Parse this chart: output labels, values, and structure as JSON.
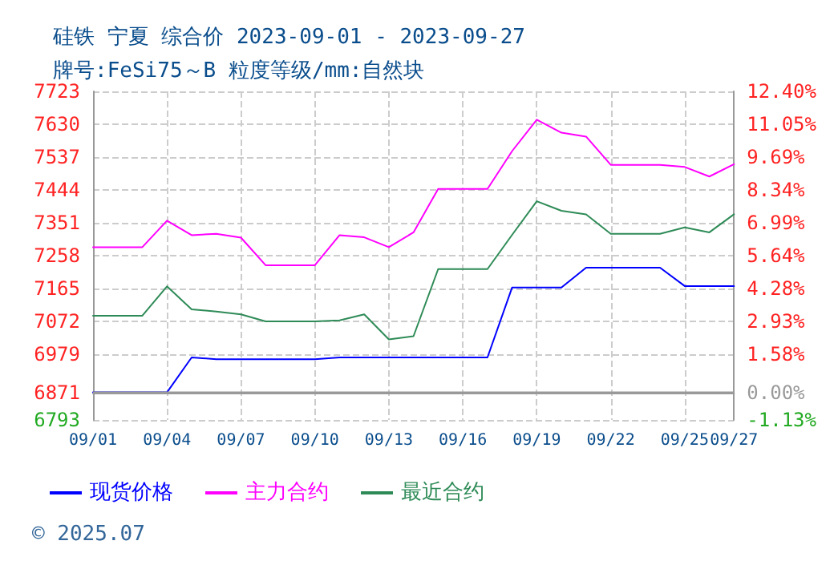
{
  "chart_data": {
    "type": "line",
    "title": "硅铁 宁夏 综合价 2023-09-01 - 2023-09-27",
    "subtitle": "牌号:FeSi75～B 粒度等级/mm:自然块",
    "annotations": [
      "© 2025.07"
    ],
    "series": [
      {
        "name": "现货价格",
        "color": "#0000ff",
        "x": [
          "--09-01",
          "--09-04",
          "--09-05",
          "--09-06",
          "--09-10",
          "--09-11",
          "--09-17",
          "--09-18",
          "--09-20",
          "--09-21",
          "--09-24",
          "--09-25",
          "--09-27"
        ],
        "values": [
          6871,
          6871,
          6970,
          6965,
          6965,
          6970,
          6970,
          7168,
          7168,
          7224,
          7224,
          7172,
          7172
        ]
      },
      {
        "name": "主力合约",
        "color": "#ff00ff",
        "x": [
          "--09-01",
          "--09-03",
          "--09-04",
          "--09-05",
          "--09-06",
          "--09-07",
          "--09-08",
          "--09-10",
          "--09-11",
          "--09-12",
          "--09-13",
          "--09-14",
          "--09-15",
          "--09-17",
          "--09-18",
          "--09-19",
          "--09-20",
          "--09-21",
          "--09-22",
          "--09-24",
          "--09-25",
          "--09-26",
          "--09-27"
        ],
        "values": [
          7282,
          7282,
          7357,
          7316,
          7320,
          7309,
          7231,
          7231,
          7316,
          7310,
          7282,
          7324,
          7447,
          7447,
          7554,
          7643,
          7606,
          7595,
          7515,
          7515,
          7509,
          7482,
          7517
        ]
      },
      {
        "name": "最近合约",
        "color": "#2e8b57",
        "x": [
          "--09-01",
          "--09-03",
          "--09-04",
          "--09-05",
          "--09-06",
          "--09-07",
          "--09-08",
          "--09-10",
          "--09-11",
          "--09-12",
          "--09-13",
          "--09-14",
          "--09-15",
          "--09-17",
          "--09-18",
          "--09-19",
          "--09-20",
          "--09-21",
          "--09-22",
          "--09-24",
          "--09-25",
          "--09-26",
          "--09-27"
        ],
        "values": [
          7088,
          7088,
          7171,
          7106,
          7100,
          7092,
          7072,
          7072,
          7075,
          7092,
          7021,
          7030,
          7220,
          7220,
          7317,
          7412,
          7385,
          7375,
          7320,
          7320,
          7338,
          7324,
          7375
        ]
      }
    ],
    "xlim": [
      "--09-01",
      "--09-27"
    ],
    "xticks": [
      {
        "value": "--09-01",
        "label": "09/01"
      },
      {
        "value": "--09-04",
        "label": "09/04"
      },
      {
        "value": "--09-07",
        "label": "09/07"
      },
      {
        "value": "--09-10",
        "label": "09/10"
      },
      {
        "value": "--09-13",
        "label": "09/13"
      },
      {
        "value": "--09-16",
        "label": "09/16"
      },
      {
        "value": "--09-19",
        "label": "09/19"
      },
      {
        "value": "--09-22",
        "label": "09/22"
      },
      {
        "value": "--09-25",
        "label": "09/25"
      },
      {
        "value": "--09-27",
        "label": "09/27"
      }
    ],
    "ylim": [
      6793,
      7723
    ],
    "yticks": [
      6793,
      6871,
      6979,
      7072,
      7165,
      7258,
      7351,
      7444,
      7537,
      7630,
      7723
    ],
    "y2lim": [
      -1.13,
      12.4
    ],
    "y2ticks": [
      {
        "value": -1.13,
        "label": "-1.13%"
      },
      {
        "value": 0,
        "label": "0.00%"
      },
      {
        "value": 1.58,
        "label": "1.58%"
      },
      {
        "value": 2.93,
        "label": "2.93%"
      },
      {
        "value": 4.28,
        "label": "4.28%"
      },
      {
        "value": 5.64,
        "label": "5.64%"
      },
      {
        "value": 6.99,
        "label": "6.99%"
      },
      {
        "value": 8.34,
        "label": "8.34%"
      },
      {
        "value": 9.69,
        "label": "9.69%"
      },
      {
        "value": 11.05,
        "label": "11.05%"
      },
      {
        "value": 12.4,
        "label": "12.40%"
      }
    ],
    "ref_lines": [
      {
        "axis": "y2",
        "value": 0,
        "color": "#999999",
        "line_style": "solid"
      }
    ],
    "grid": true,
    "legend": "bottom",
    "marker": "none",
    "line_style": "solid"
  }
}
